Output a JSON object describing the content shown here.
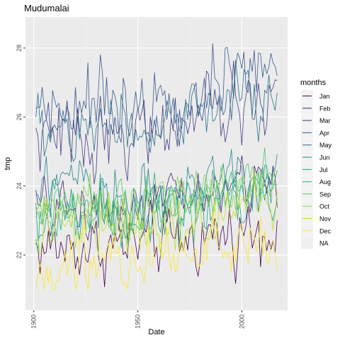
{
  "chart_data": {
    "type": "line",
    "title": "Mudumalai",
    "xlabel": "Date",
    "ylabel": "tmp",
    "xlim": [
      1896,
      2022
    ],
    "ylim": [
      20.4,
      28.9
    ],
    "x_ticks": [
      1900,
      1950,
      2000
    ],
    "y_ticks": [
      22,
      24,
      26,
      28
    ],
    "grid": true,
    "legend": {
      "title": "months",
      "placement": "right"
    },
    "colors": {
      "panel_bg": "#EBEBEB",
      "grid_major": "#FFFFFF",
      "grid_minor": "#F2F2F2",
      "na_color": "#F0F0F0"
    },
    "series": [
      {
        "name": "Jan",
        "color": "#440154",
        "base_start": 22.2,
        "base_end": 22.9,
        "noise": 0.45,
        "min_clip": 20.6
      },
      {
        "name": "Feb",
        "color": "#482173",
        "base_start": 23.3,
        "base_end": 24.3,
        "noise": 0.4
      },
      {
        "name": "Mar",
        "color": "#433E85",
        "base_start": 25.4,
        "base_end": 26.6,
        "noise": 0.5
      },
      {
        "name": "Apr",
        "color": "#38598C",
        "base_start": 26.4,
        "base_end": 27.5,
        "noise": 0.5
      },
      {
        "name": "May",
        "color": "#2D708E",
        "base_start": 25.6,
        "base_end": 26.8,
        "noise": 0.5
      },
      {
        "name": "Jun",
        "color": "#25858E",
        "base_start": 23.8,
        "base_end": 24.4,
        "noise": 0.45
      },
      {
        "name": "Jul",
        "color": "#1E9B8A",
        "base_start": 23.1,
        "base_end": 23.9,
        "noise": 0.4
      },
      {
        "name": "Aug",
        "color": "#2BB07F",
        "base_start": 23.2,
        "base_end": 24.1,
        "noise": 0.4
      },
      {
        "name": "Sep",
        "color": "#51C56A",
        "base_start": 23.4,
        "base_end": 24.3,
        "noise": 0.4
      },
      {
        "name": "Oct",
        "color": "#85D54A",
        "base_start": 23.3,
        "base_end": 24.2,
        "noise": 0.35
      },
      {
        "name": "Nov",
        "color": "#C2DF23",
        "base_start": 22.6,
        "base_end": 23.5,
        "noise": 0.4
      },
      {
        "name": "Dec",
        "color": "#FDE725",
        "base_start": 21.7,
        "base_end": 22.6,
        "noise": 0.45,
        "min_clip": 20.6
      }
    ],
    "legend_na_label": "NA",
    "year_start": 1901,
    "year_end": 2017
  }
}
